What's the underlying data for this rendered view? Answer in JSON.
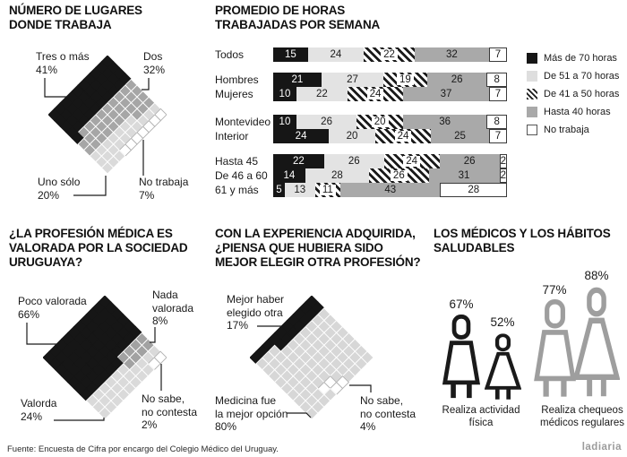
{
  "chart_data": [
    {
      "id": "workplaces",
      "type": "pie",
      "representation": "diamond-waffle-10x10",
      "title": "NÚMERO DE LUGARES DONDE TRABAJA",
      "slices": [
        {
          "label": "Tres o más",
          "value": 41,
          "color": "#161616"
        },
        {
          "label": "Dos",
          "value": 32,
          "color": "#a6a6a6"
        },
        {
          "label": "Uno sólo",
          "value": 20,
          "color": "#dadada"
        },
        {
          "label": "No trabaja",
          "value": 7,
          "color": "#ffffff"
        }
      ]
    },
    {
      "id": "hours",
      "type": "bar",
      "stacked": true,
      "title": "PROMEDIO DE HORAS TRABAJADAS POR SEMANA",
      "categories": [
        "Todos",
        "Hombres",
        "Mujeres",
        "Montevideo",
        "Interior",
        "Hasta 45",
        "De 46 a 60",
        "61 y más"
      ],
      "series": [
        {
          "name": "Más de 70 horas",
          "values": [
            15,
            21,
            10,
            10,
            24,
            22,
            14,
            5
          ]
        },
        {
          "name": "De 51 a 70 horas",
          "values": [
            24,
            27,
            22,
            26,
            20,
            26,
            28,
            13
          ]
        },
        {
          "name": "De 41 a 50 horas",
          "values": [
            22,
            19,
            24,
            20,
            24,
            24,
            26,
            11
          ]
        },
        {
          "name": "Hasta 40 horas",
          "values": [
            32,
            26,
            37,
            36,
            25,
            26,
            31,
            43
          ]
        },
        {
          "name": "No trabaja",
          "values": [
            7,
            8,
            7,
            8,
            7,
            2,
            2,
            28
          ]
        }
      ]
    },
    {
      "id": "valued",
      "type": "pie",
      "representation": "diamond-waffle-10x10",
      "title": "¿LA PROFESIÓN MÉDICA ES VALORADA POR LA SOCIEDAD URUGUAYA?",
      "slices": [
        {
          "label": "Poco valorada",
          "value": 66,
          "color": "#161616"
        },
        {
          "label": "Nada valorada",
          "value": 8,
          "color": "#a2a2a2"
        },
        {
          "label": "Valorda",
          "value": 24,
          "color": "#dadada"
        },
        {
          "label": "No sabe, no contesta",
          "value": 2,
          "color": "#ffffff"
        }
      ]
    },
    {
      "id": "profession",
      "type": "pie",
      "representation": "diamond-waffle-10x10",
      "title": "CON LA EXPERIENCIA ADQUIRIDA, ¿PIENSA QUE HUBIERA SIDO MEJOR ELEGIR OTRA PROFESIÓN?",
      "slices": [
        {
          "label": "Mejor haber elegido otra",
          "value": 17,
          "color": "#161616"
        },
        {
          "label": "Medicina fue la mejor opción",
          "value": 80,
          "color": "#d7d7d7"
        },
        {
          "label": "No sabe, no contesta",
          "value": 4,
          "color": "#ffffff"
        }
      ]
    },
    {
      "id": "habits",
      "type": "pictogram",
      "title": "LOS MÉDICOS Y LOS HÁBITOS SALUDABLES",
      "groups": [
        {
          "label": "Realiza actividad física",
          "male": 67,
          "female": 52
        },
        {
          "label": "Realiza chequeos médicos regulares",
          "male": 77,
          "female": 88
        }
      ]
    }
  ],
  "panels": {
    "workplaces": {
      "title1": "NÚMERO DE LUGARES",
      "title2": "DONDE TRABAJA",
      "labels": {
        "tres_l1": "Tres o más",
        "tres_l2": "41%",
        "dos_l1": "Dos",
        "dos_l2": "32%",
        "uno_l1": "Uno sólo",
        "uno_l2": "20%",
        "no_l1": "No trabaja",
        "no_l2": "7%"
      },
      "grid": [
        "AAAABBBBCD",
        "AAAABBBBCD",
        "AAAABBBBCD",
        "AAAABBBCCD",
        "AAAABBBCCD",
        "AAAABBBCCD",
        "AAAABBBCCD",
        "AAAABBBCCC",
        "AAAABBBCCC",
        "AAAAABBCCC"
      ],
      "colors": {
        "A": "#161616",
        "B": "#a6a6a6",
        "C": "#dadada",
        "D": "#ffffff"
      }
    },
    "hours": {
      "title1": "PROMEDIO DE HORAS",
      "title2": "TRABAJADAS POR SEMANA",
      "legend": [
        {
          "label": "Más de 70 horas",
          "style": "black"
        },
        {
          "label": "De 51 a 70 horas",
          "style": "light"
        },
        {
          "label": "De 41 a 50 horas",
          "style": "hatch"
        },
        {
          "label": "Hasta 40 horas",
          "style": "gray"
        },
        {
          "label": "No trabaja",
          "style": "white"
        }
      ]
    },
    "valued": {
      "title1": "¿LA PROFESIÓN MÉDICA ES",
      "title2": "VALORADA POR LA SOCIEDAD",
      "title3": "URUGUAYA?",
      "labels": {
        "poco_l1": "Poco valorada",
        "poco_l2": "66%",
        "nada_l1": "Nada",
        "nada_l2": "valorada",
        "nada_l3": "8%",
        "val_l1": "Valorda",
        "val_l2": "24%",
        "ns_l1": "No sabe,",
        "ns_l2": "no contesta",
        "ns_l3": "2%"
      },
      "grid": [
        "AAAAAABBCD",
        "AAAAAABBCD",
        "AAAAAABBCC",
        "AAAAAABBCC",
        "AAAAAAACCC",
        "AAAAAAACCC",
        "AAAAAAACCC",
        "AAAAAAACCC",
        "AAAAAAACCC",
        "AAAAAAACCC"
      ],
      "colors": {
        "A": "#161616",
        "B": "#a2a2a2",
        "C": "#dadada",
        "D": "#ffffff"
      }
    },
    "profession": {
      "title1": "CON LA EXPERIENCIA ADQUIRIDA,",
      "title2": "¿PIENSA QUE HUBIERA SIDO",
      "title3": "MEJOR ELEGIR OTRA PROFESIÓN?",
      "labels": {
        "mejor_l1": "Mejor haber",
        "mejor_l2": "elegido otra",
        "mejor_l3": "17%",
        "med_l1": "Medicina fue",
        "med_l2": "la mejor opción",
        "med_l3": "80%",
        "ns_l1": "No sabe,",
        "ns_l2": "no contesta",
        "ns_l3": "4%"
      },
      "grid": [
        "AACCCCCCCC",
        "AACCCCCCCC",
        "AACCCCCCCC",
        "AACCCCCCCC",
        "AACCCCCCCD",
        "AACCCCCCDD",
        "AACCCCCCDC",
        "ACCCCCCCCC",
        "ACCCCCCCCC",
        "ACCCCCCCCC"
      ],
      "colors": {
        "A": "#161616",
        "C": "#d7d7d7",
        "D": "#ffffff"
      }
    },
    "habits": {
      "title1": "LOS MÉDICOS Y LOS HÁBITOS",
      "title2": "SALUDABLES",
      "pct_male_activity": "67%",
      "pct_female_activity": "52%",
      "pct_male_checkup": "77%",
      "pct_female_checkup": "88%",
      "caption1_l1": "Realiza actividad",
      "caption1_l2": "física",
      "caption2_l1": "Realiza chequeos",
      "caption2_l2": "médicos regulares"
    }
  },
  "footer": {
    "source": "Fuente: Encuesta de Cifra por encargo del Colegio Médico del Uruguay.",
    "logo": "ladiaria"
  }
}
